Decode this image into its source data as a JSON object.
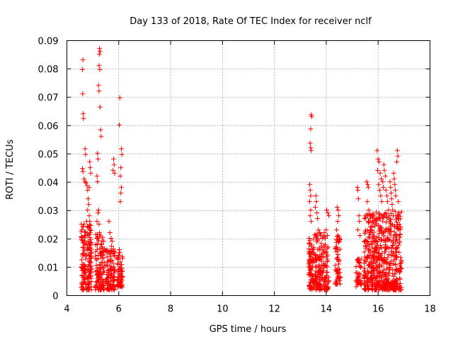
{
  "chart_data": {
    "type": "scatter",
    "title": "Day 133 of 2018, Rate Of TEC Index for receiver nclf",
    "xlabel": "GPS time / hours",
    "ylabel": "ROTI / TECUs",
    "xlim": [
      4,
      18
    ],
    "ylim": [
      0,
      0.09
    ],
    "xticks": [
      4,
      6,
      8,
      10,
      12,
      14,
      16,
      18
    ],
    "yticks": [
      0,
      0.01,
      0.02,
      0.03,
      0.04,
      0.05,
      0.06,
      0.07,
      0.08,
      0.09
    ],
    "ytick_labels": [
      "0",
      "0.01",
      "0.02",
      "0.03",
      "0.04",
      "0.05",
      "0.06",
      "0.07",
      "0.08",
      "0.09"
    ],
    "grid": true,
    "marker": "+",
    "color": "#ff0000",
    "series": [
      {
        "name": "ROTI",
        "points": [
          [
            4.62,
            0.0832
          ],
          [
            4.6,
            0.0798
          ],
          [
            4.61,
            0.0712
          ],
          [
            4.63,
            0.0642
          ],
          [
            4.64,
            0.0625
          ],
          [
            4.7,
            0.0518
          ],
          [
            4.72,
            0.0498
          ],
          [
            4.6,
            0.0448
          ],
          [
            4.62,
            0.0438
          ],
          [
            4.66,
            0.0412
          ],
          [
            4.7,
            0.0402
          ],
          [
            4.74,
            0.0398
          ],
          [
            4.78,
            0.0388
          ],
          [
            4.8,
            0.0372
          ],
          [
            4.82,
            0.0342
          ],
          [
            4.84,
            0.0322
          ],
          [
            4.8,
            0.0302
          ],
          [
            4.86,
            0.0282
          ],
          [
            4.88,
            0.0262
          ],
          [
            4.84,
            0.0242
          ],
          [
            4.9,
            0.0452
          ],
          [
            4.92,
            0.0432
          ],
          [
            4.88,
            0.0472
          ],
          [
            4.86,
            0.0382
          ],
          [
            4.56,
            0.0252
          ],
          [
            4.58,
            0.0232
          ],
          [
            4.66,
            0.0252
          ],
          [
            4.76,
            0.0262
          ],
          [
            4.9,
            0.0222
          ],
          [
            5.26,
            0.0872
          ],
          [
            5.28,
            0.0862
          ],
          [
            5.25,
            0.0852
          ],
          [
            5.24,
            0.0812
          ],
          [
            5.27,
            0.0798
          ],
          [
            5.22,
            0.0742
          ],
          [
            5.24,
            0.0722
          ],
          [
            5.28,
            0.0665
          ],
          [
            5.3,
            0.0585
          ],
          [
            5.32,
            0.0562
          ],
          [
            5.18,
            0.0502
          ],
          [
            5.2,
            0.0482
          ],
          [
            5.16,
            0.0422
          ],
          [
            5.18,
            0.0402
          ],
          [
            5.22,
            0.0302
          ],
          [
            5.2,
            0.0292
          ],
          [
            5.16,
            0.0262
          ],
          [
            5.24,
            0.0252
          ],
          [
            5.26,
            0.0222
          ],
          [
            5.8,
            0.0482
          ],
          [
            5.82,
            0.0462
          ],
          [
            5.78,
            0.0442
          ],
          [
            5.84,
            0.0432
          ],
          [
            5.62,
            0.0262
          ],
          [
            5.66,
            0.0222
          ],
          [
            5.7,
            0.0202
          ],
          [
            5.74,
            0.0192
          ],
          [
            6.04,
            0.0698
          ],
          [
            6.02,
            0.0602
          ],
          [
            6.1,
            0.0518
          ],
          [
            6.12,
            0.0498
          ],
          [
            6.08,
            0.0452
          ],
          [
            6.06,
            0.0422
          ],
          [
            6.1,
            0.0382
          ],
          [
            6.08,
            0.0362
          ],
          [
            6.06,
            0.0332
          ],
          [
            6.02,
            0.0162
          ],
          [
            6.04,
            0.0152
          ],
          [
            6.0,
            0.0142
          ],
          [
            13.42,
            0.0638
          ],
          [
            13.44,
            0.0632
          ],
          [
            13.4,
            0.0588
          ],
          [
            13.38,
            0.0538
          ],
          [
            13.4,
            0.0522
          ],
          [
            13.42,
            0.0512
          ],
          [
            13.36,
            0.0392
          ],
          [
            13.38,
            0.0372
          ],
          [
            13.4,
            0.0352
          ],
          [
            13.36,
            0.0332
          ],
          [
            13.4,
            0.0302
          ],
          [
            13.38,
            0.0282
          ],
          [
            13.42,
            0.0262
          ],
          [
            13.34,
            0.0202
          ],
          [
            13.36,
            0.0182
          ],
          [
            13.6,
            0.0352
          ],
          [
            13.62,
            0.0332
          ],
          [
            13.58,
            0.0312
          ],
          [
            13.64,
            0.0292
          ],
          [
            13.66,
            0.0272
          ],
          [
            13.7,
            0.0232
          ],
          [
            13.74,
            0.0222
          ],
          [
            13.8,
            0.0212
          ],
          [
            13.86,
            0.0202
          ],
          [
            14.02,
            0.0302
          ],
          [
            14.06,
            0.0292
          ],
          [
            14.1,
            0.0282
          ],
          [
            14.0,
            0.0232
          ],
          [
            14.04,
            0.0212
          ],
          [
            13.96,
            0.0202
          ],
          [
            13.92,
            0.0222
          ],
          [
            14.42,
            0.0312
          ],
          [
            14.46,
            0.0302
          ],
          [
            14.48,
            0.0282
          ],
          [
            14.44,
            0.0262
          ],
          [
            14.4,
            0.0232
          ],
          [
            14.46,
            0.0212
          ],
          [
            14.5,
            0.0192
          ],
          [
            15.2,
            0.0382
          ],
          [
            15.22,
            0.0372
          ],
          [
            15.24,
            0.0342
          ],
          [
            15.26,
            0.0282
          ],
          [
            15.28,
            0.0262
          ],
          [
            15.22,
            0.0232
          ],
          [
            15.3,
            0.0212
          ],
          [
            15.56,
            0.0402
          ],
          [
            15.6,
            0.0392
          ],
          [
            15.62,
            0.0382
          ],
          [
            15.58,
            0.0332
          ],
          [
            15.64,
            0.0302
          ],
          [
            15.66,
            0.0262
          ],
          [
            15.7,
            0.0242
          ],
          [
            15.96,
            0.0512
          ],
          [
            16.0,
            0.0482
          ],
          [
            16.04,
            0.0472
          ],
          [
            15.98,
            0.0442
          ],
          [
            16.08,
            0.0432
          ],
          [
            16.12,
            0.0412
          ],
          [
            16.02,
            0.0392
          ],
          [
            16.06,
            0.0372
          ],
          [
            16.1,
            0.0352
          ],
          [
            16.14,
            0.0332
          ],
          [
            16.18,
            0.0402
          ],
          [
            16.2,
            0.0382
          ],
          [
            16.22,
            0.0462
          ],
          [
            16.24,
            0.0442
          ],
          [
            16.28,
            0.0422
          ],
          [
            16.3,
            0.0372
          ],
          [
            16.34,
            0.0352
          ],
          [
            16.36,
            0.0332
          ],
          [
            16.4,
            0.0302
          ],
          [
            16.42,
            0.0282
          ],
          [
            16.44,
            0.0262
          ],
          [
            16.46,
            0.0402
          ],
          [
            16.48,
            0.0382
          ],
          [
            16.5,
            0.0362
          ],
          [
            16.52,
            0.0342
          ],
          [
            16.54,
            0.0322
          ],
          [
            16.56,
            0.0302
          ],
          [
            16.58,
            0.0282
          ],
          [
            16.6,
            0.0432
          ],
          [
            16.62,
            0.0412
          ],
          [
            16.64,
            0.0392
          ],
          [
            16.66,
            0.0372
          ],
          [
            16.68,
            0.0352
          ],
          [
            16.74,
            0.0512
          ],
          [
            16.76,
            0.0492
          ],
          [
            16.72,
            0.0472
          ],
          [
            16.78,
            0.0332
          ],
          [
            16.8,
            0.0292
          ],
          [
            16.82,
            0.0252
          ],
          [
            16.84,
            0.0232
          ]
        ],
        "clusters": [
          {
            "x_start": 4.55,
            "x_end": 4.95,
            "y_min": 0.002,
            "y_max": 0.025,
            "count": 170
          },
          {
            "x_start": 5.1,
            "x_end": 5.45,
            "y_min": 0.002,
            "y_max": 0.022,
            "count": 120
          },
          {
            "x_start": 5.5,
            "x_end": 5.85,
            "y_min": 0.002,
            "y_max": 0.018,
            "count": 110
          },
          {
            "x_start": 5.95,
            "x_end": 6.15,
            "y_min": 0.003,
            "y_max": 0.016,
            "count": 60
          },
          {
            "x_start": 13.32,
            "x_end": 13.5,
            "y_min": 0.002,
            "y_max": 0.02,
            "count": 70
          },
          {
            "x_start": 13.5,
            "x_end": 14.1,
            "y_min": 0.002,
            "y_max": 0.022,
            "count": 170
          },
          {
            "x_start": 14.35,
            "x_end": 14.55,
            "y_min": 0.004,
            "y_max": 0.022,
            "count": 60
          },
          {
            "x_start": 15.15,
            "x_end": 15.35,
            "y_min": 0.003,
            "y_max": 0.014,
            "count": 40
          },
          {
            "x_start": 15.45,
            "x_end": 16.9,
            "y_min": 0.002,
            "y_max": 0.03,
            "count": 560
          }
        ]
      }
    ]
  }
}
